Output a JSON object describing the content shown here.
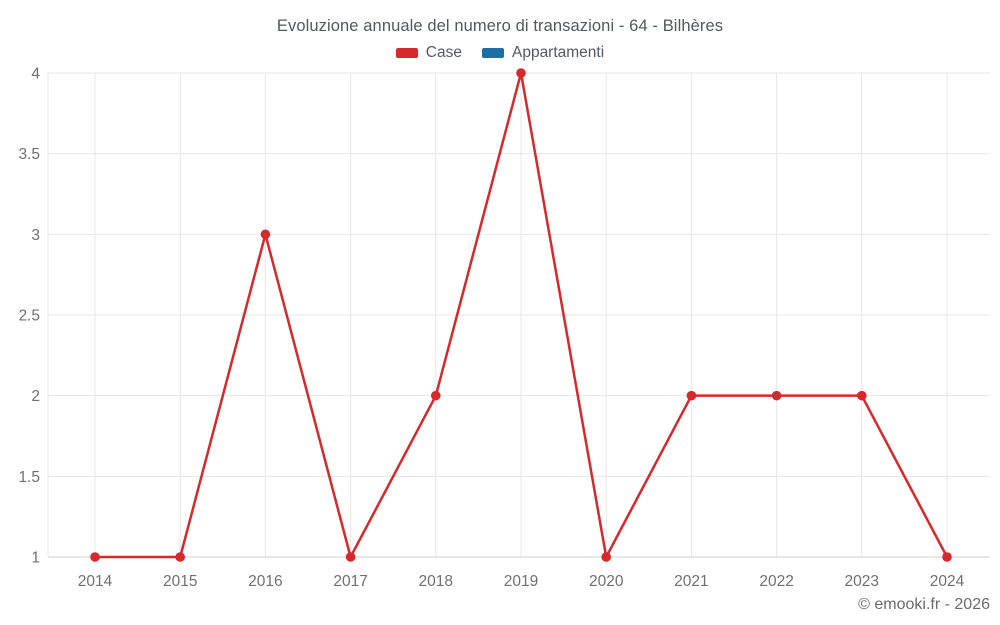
{
  "title": "Evoluzione annuale del numero di transazioni - 64 - Bilhères",
  "footer": {
    "credit": "© emooki.fr - 2026"
  },
  "colors": {
    "background": "#ffffff",
    "title_text": "#54585d",
    "legend_text": "#555a5e",
    "tick_text": "#707070",
    "gridline": "#e7e7e7",
    "axis_line": "#cfcfcf",
    "case_red": "#d7282c",
    "appartamenti_blue": "#1a6fa5"
  },
  "chart_data": {
    "type": "line",
    "title": "Evoluzione annuale del numero di transazioni - 64 - Bilhères",
    "categories": [
      "2014",
      "2015",
      "2016",
      "2017",
      "2018",
      "2019",
      "2020",
      "2021",
      "2022",
      "2023",
      "2024"
    ],
    "series": [
      {
        "name": "Case",
        "color": "#d7282c",
        "values": [
          1,
          1,
          3,
          1,
          2,
          4,
          1,
          2,
          2,
          2,
          1
        ]
      },
      {
        "name": "Appartamenti",
        "color": "#1a6fa5",
        "values": []
      }
    ],
    "xlabel": "",
    "ylabel": "",
    "ylim": [
      1,
      4
    ],
    "yticks": [
      1,
      1.5,
      2,
      2.5,
      3,
      3.5,
      4
    ],
    "grid": true,
    "legend_position": "top",
    "marker": "circle"
  }
}
